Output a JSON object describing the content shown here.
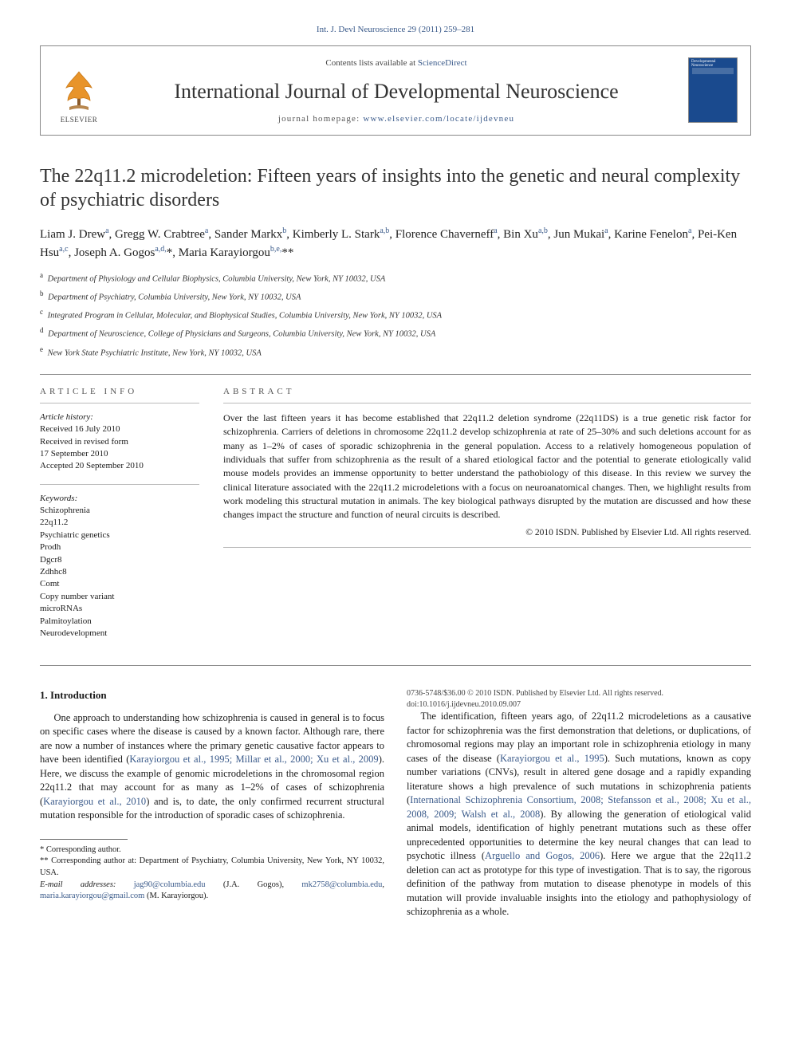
{
  "reference": "Int. J. Devl Neuroscience 29 (2011) 259–281",
  "header": {
    "contents_prefix": "Contents lists available at ",
    "contents_link": "ScienceDirect",
    "journal_name": "International Journal of Developmental Neuroscience",
    "homepage_prefix": "journal homepage: ",
    "homepage_url": "www.elsevier.com/locate/ijdevneu",
    "cover_label": "Developmental Neuroscience",
    "elsevier": "ELSEVIER"
  },
  "title": "The 22q11.2 microdeletion: Fifteen years of insights into the genetic and neural complexity of psychiatric disorders",
  "authors_html": "Liam J. Drew<sup>a</sup>, Gregg W. Crabtree<sup>a</sup>, Sander Markx<sup>b</sup>, Kimberly L. Stark<sup>a,b</sup>, Florence Chaverneff<sup>a</sup>, Bin Xu<sup>a,b</sup>, Jun Mukai<sup>a</sup>, Karine Fenelon<sup>a</sup>, Pei-Ken Hsu<sup>a,c</sup>, Joseph A. Gogos<sup>a,d,</sup>*, Maria Karayiorgou<sup>b,e,</sup>**",
  "affiliations": [
    {
      "key": "a",
      "text": "Department of Physiology and Cellular Biophysics, Columbia University, New York, NY 10032, USA"
    },
    {
      "key": "b",
      "text": "Department of Psychiatry, Columbia University, New York, NY 10032, USA"
    },
    {
      "key": "c",
      "text": "Integrated Program in Cellular, Molecular, and Biophysical Studies, Columbia University, New York, NY 10032, USA"
    },
    {
      "key": "d",
      "text": "Department of Neuroscience, College of Physicians and Surgeons, Columbia University, New York, NY 10032, USA"
    },
    {
      "key": "e",
      "text": "New York State Psychiatric Institute, New York, NY 10032, USA"
    }
  ],
  "article_info": {
    "header": "article info",
    "history_label": "Article history:",
    "history": [
      "Received 16 July 2010",
      "Received in revised form",
      "17 September 2010",
      "Accepted 20 September 2010"
    ],
    "keywords_label": "Keywords:",
    "keywords": [
      "Schizophrenia",
      "22q11.2",
      "Psychiatric genetics",
      "Prodh",
      "Dgcr8",
      "Zdhhc8",
      "Comt",
      "Copy number variant",
      "microRNAs",
      "Palmitoylation",
      "Neurodevelopment"
    ]
  },
  "abstract": {
    "header": "abstract",
    "text": "Over the last fifteen years it has become established that 22q11.2 deletion syndrome (22q11DS) is a true genetic risk factor for schizophrenia. Carriers of deletions in chromosome 22q11.2 develop schizophrenia at rate of 25–30% and such deletions account for as many as 1–2% of cases of sporadic schizophrenia in the general population. Access to a relatively homogeneous population of individuals that suffer from schizophrenia as the result of a shared etiological factor and the potential to generate etiologically valid mouse models provides an immense opportunity to better understand the pathobiology of this disease. In this review we survey the clinical literature associated with the 22q11.2 microdeletions with a focus on neuroanatomical changes. Then, we highlight results from work modeling this structural mutation in animals. The key biological pathways disrupted by the mutation are discussed and how these changes impact the structure and function of neural circuits is described.",
    "copyright": "© 2010 ISDN. Published by Elsevier Ltd. All rights reserved."
  },
  "body": {
    "section_title": "1.  Introduction",
    "para1_pre": "One approach to understanding how schizophrenia is caused in general is to focus on specific cases where the disease is caused by a known factor. Although rare, there are now a number of instances where the primary genetic causative factor appears to have been identified (",
    "para1_link1": "Karayiorgou et al., 1995; Millar et al., 2000; Xu et al., 2009",
    "para1_mid1": "). Here, we discuss the example of genomic microdeletions in the chromosomal region 22q11.2 that may account for as many as 1–2% of cases of schizophrenia (",
    "para1_link2": "Karayiorgou et al., 2010",
    "para1_post": ") and is, to date, the only confirmed recurrent structural mutation responsible for the introduction of sporadic cases of schizophrenia.",
    "para2_pre": "The identification, fifteen years ago, of 22q11.2 microdeletions as a causative factor for schizophrenia was the first demonstration that deletions, or duplications, of chromosomal regions may play an important role in schizophrenia etiology in many cases of the disease (",
    "para2_link1": "Karayiorgou et al., 1995",
    "para2_mid1": "). Such mutations, known as copy number variations (CNVs), result in altered gene dosage and a rapidly expanding literature shows a high prevalence of such mutations in schizophrenia patients (",
    "para2_link2": "International Schizophrenia Consortium, 2008; Stefansson et al., 2008; Xu et al., 2008, 2009; Walsh et al., 2008",
    "para2_mid2": "). By allowing the generation of etiological valid animal models, identification of highly penetrant mutations such as these offer unprecedented opportunities to determine the key neural changes that can lead to psychotic illness (",
    "para2_link3": "Arguello and Gogos, 2006",
    "para2_post": "). Here we argue that the 22q11.2 deletion can act as prototype for this type of investigation. That is to say, the rigorous definition of the pathway from mutation to disease phenotype in models of this mutation will provide invaluable insights into the etiology and pathophysiology of schizophrenia as a whole."
  },
  "footnotes": {
    "star1": "* Corresponding author.",
    "star2": "** Corresponding author at: Department of Psychiatry, Columbia University, New York, NY 10032, USA.",
    "email_label": "E-mail addresses: ",
    "email1": "jag90@columbia.edu",
    "email1_name": " (J.A. Gogos), ",
    "email2": "mk2758@columbia.edu",
    "email2_sep": ", ",
    "email3": "maria.karayiorgou@gmail.com",
    "email3_name": " (M. Karayiorgou)."
  },
  "doi": {
    "line1": "0736-5748/$36.00 © 2010 ISDN. Published by Elsevier Ltd. All rights reserved.",
    "line2": "doi:10.1016/j.ijdevneu.2010.09.007"
  },
  "colors": {
    "link": "#3a5a8a",
    "text": "#1a1a1a",
    "cover_bg": "#1a4a8e",
    "rule": "#888888"
  }
}
